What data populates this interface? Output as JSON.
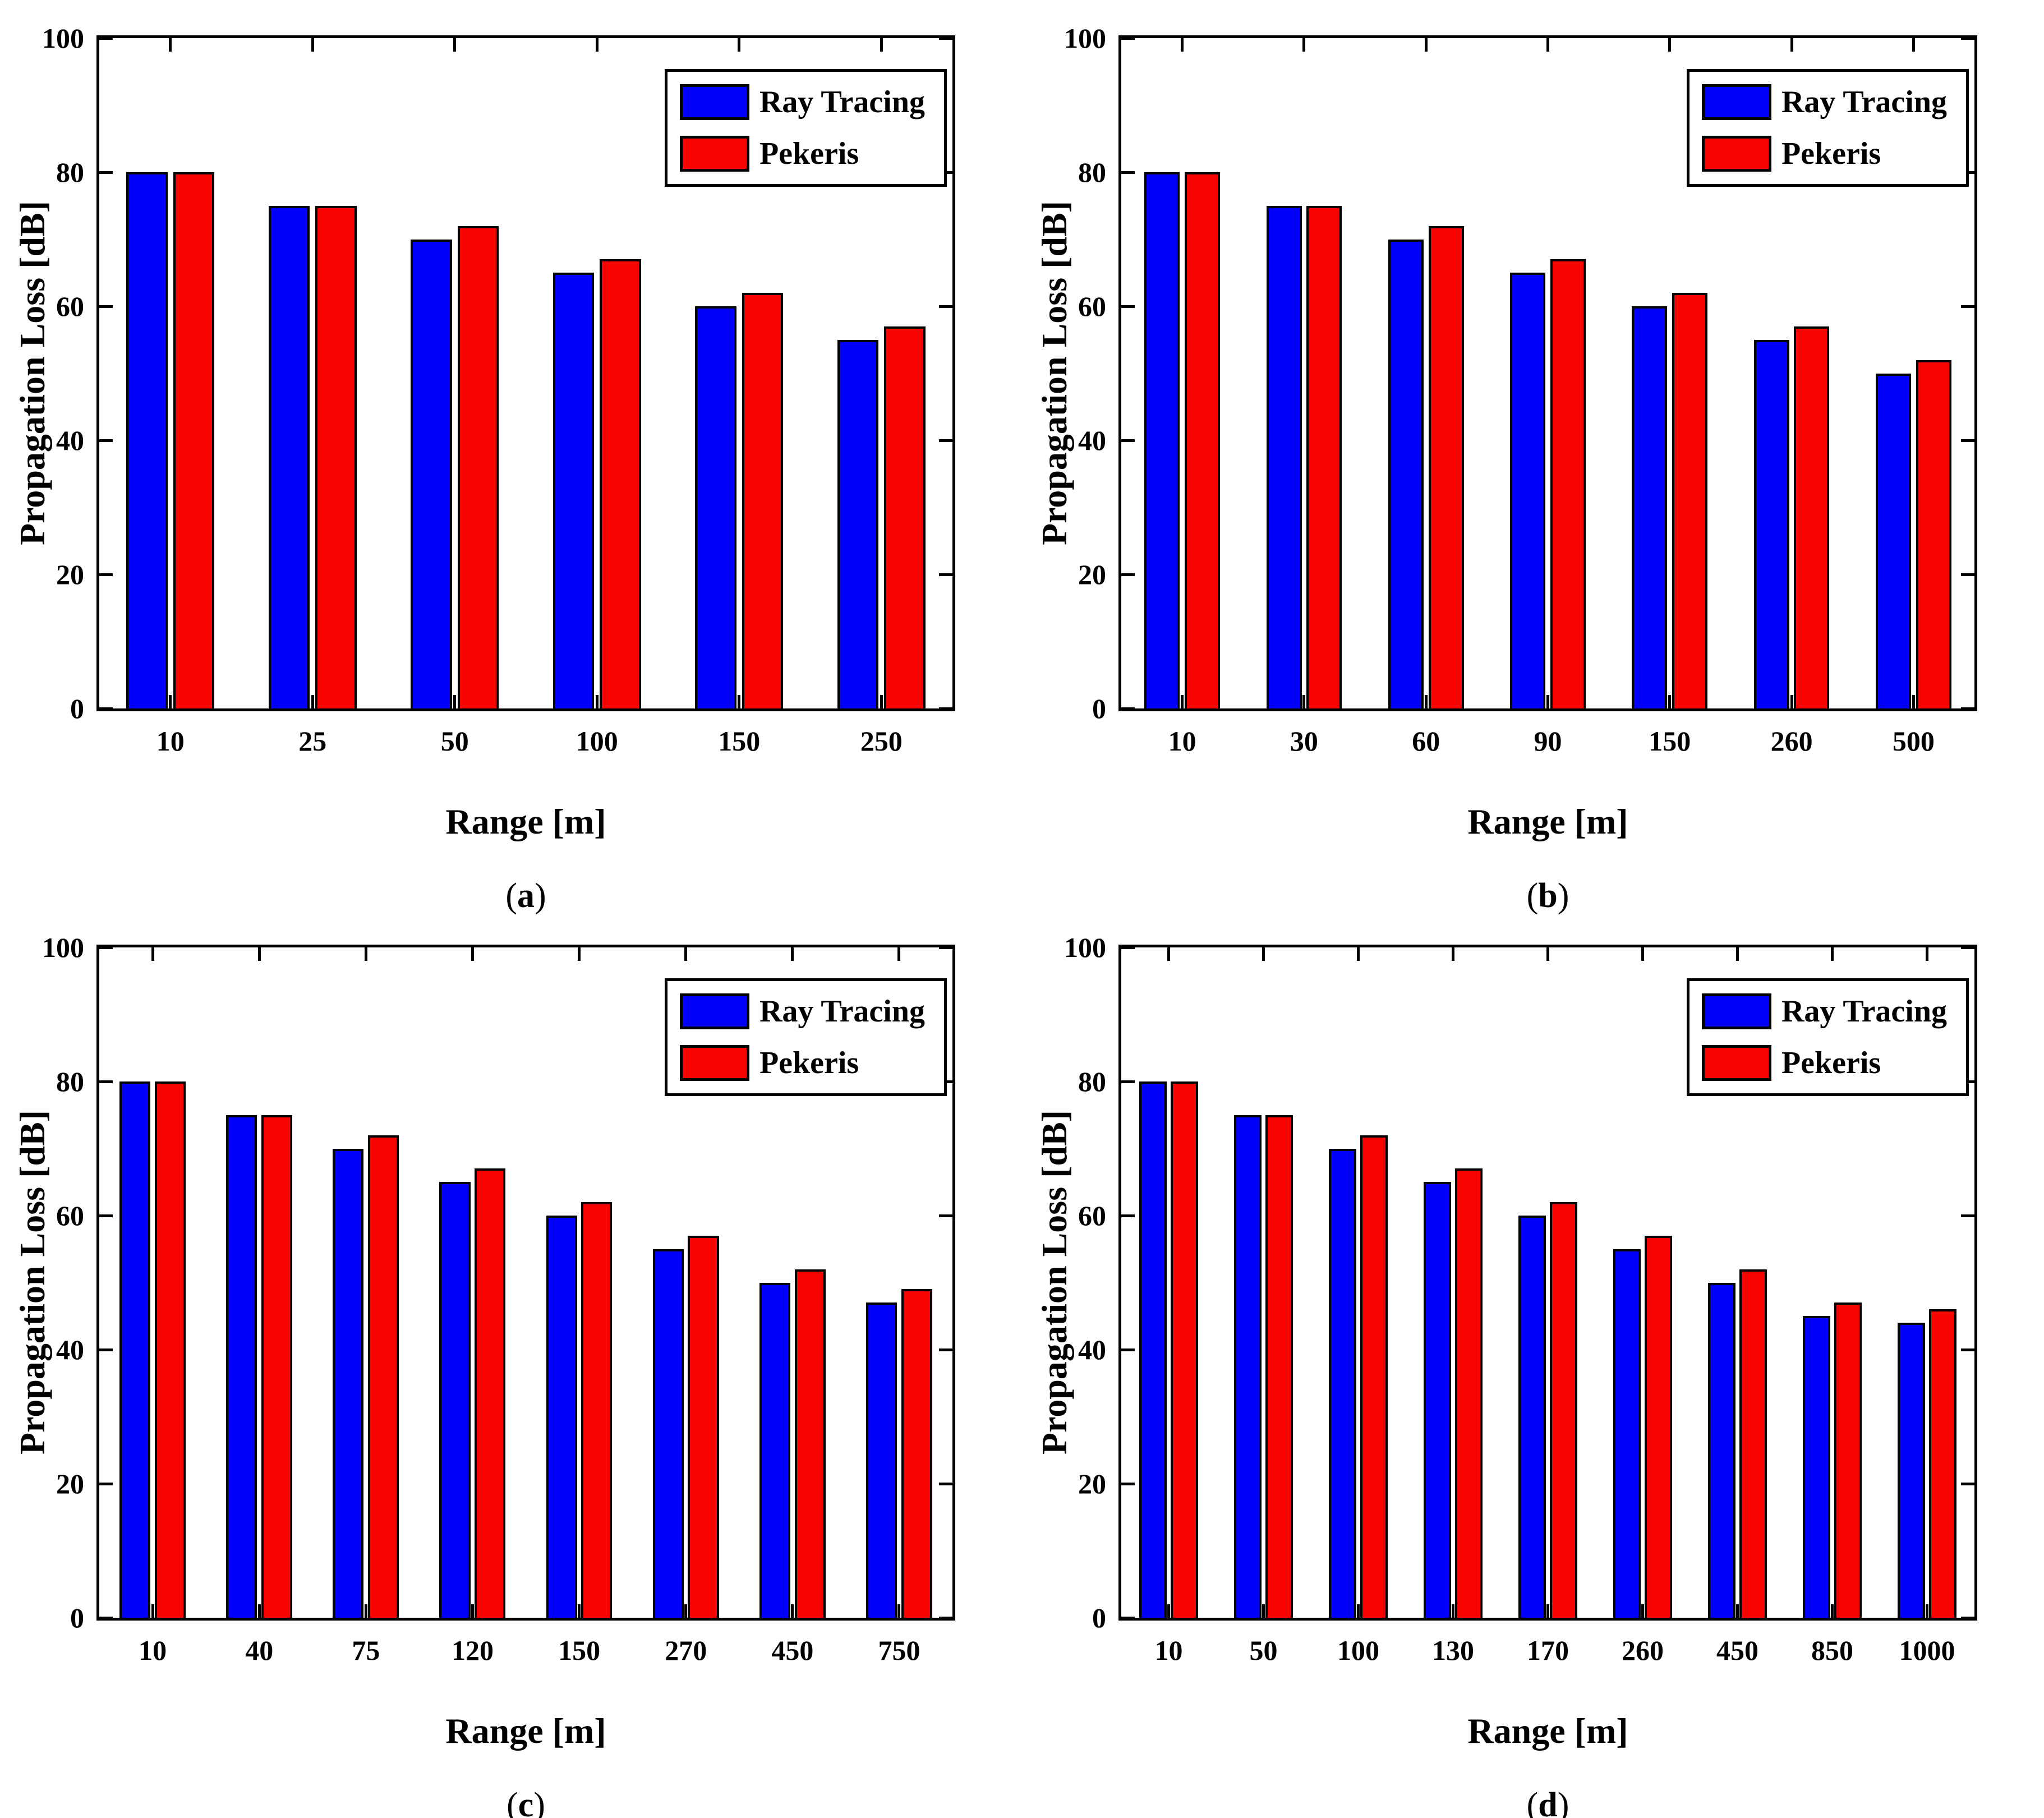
{
  "figure": {
    "background": "#ffffff",
    "layout": "2x2 subplot grid",
    "series_colors": {
      "ray_tracing": "#0000fb",
      "pekeris": "#f80400"
    }
  },
  "chart_data": [
    {
      "id": "a",
      "panel_label": "(a)",
      "type": "bar",
      "title": "",
      "xlabel": "Range [m]",
      "ylabel": "Propagation Loss [dB]",
      "ylim": [
        0,
        100
      ],
      "yticks": [
        0,
        20,
        40,
        60,
        80,
        100
      ],
      "grid": false,
      "legend_position": "top-right inside",
      "categories": [
        "10",
        "25",
        "50",
        "100",
        "150",
        "250"
      ],
      "series": [
        {
          "name": "Ray Tracing",
          "color": "#0000fb",
          "values": [
            80,
            75,
            70,
            65,
            60,
            55
          ]
        },
        {
          "name": "Pekeris",
          "color": "#f80400",
          "values": [
            80,
            75,
            72,
            67,
            62,
            57
          ]
        }
      ]
    },
    {
      "id": "b",
      "panel_label": "(b)",
      "type": "bar",
      "title": "",
      "xlabel": "Range [m]",
      "ylabel": "Propagation Loss [dB]",
      "ylim": [
        0,
        100
      ],
      "yticks": [
        0,
        20,
        40,
        60,
        80,
        100
      ],
      "grid": false,
      "legend_position": "top-right inside",
      "categories": [
        "10",
        "30",
        "60",
        "90",
        "150",
        "260",
        "500"
      ],
      "series": [
        {
          "name": "Ray Tracing",
          "color": "#0000fb",
          "values": [
            80,
            75,
            70,
            65,
            60,
            55,
            50
          ]
        },
        {
          "name": "Pekeris",
          "color": "#f80400",
          "values": [
            80,
            75,
            72,
            67,
            62,
            57,
            52
          ]
        }
      ]
    },
    {
      "id": "c",
      "panel_label": "(c)",
      "type": "bar",
      "title": "",
      "xlabel": "Range [m]",
      "ylabel": "Propagation Loss [dB]",
      "ylim": [
        0,
        100
      ],
      "yticks": [
        0,
        20,
        40,
        60,
        80,
        100
      ],
      "grid": false,
      "legend_position": "top-right inside",
      "categories": [
        "10",
        "40",
        "75",
        "120",
        "150",
        "270",
        "450",
        "750"
      ],
      "series": [
        {
          "name": "Ray Tracing",
          "color": "#0000fb",
          "values": [
            80,
            75,
            70,
            65,
            60,
            55,
            50,
            47
          ]
        },
        {
          "name": "Pekeris",
          "color": "#f80400",
          "values": [
            80,
            75,
            72,
            67,
            62,
            57,
            52,
            49
          ]
        }
      ]
    },
    {
      "id": "d",
      "panel_label": "(d)",
      "type": "bar",
      "title": "",
      "xlabel": "Range [m]",
      "ylabel": "Propagation Loss [dB]",
      "ylim": [
        0,
        100
      ],
      "yticks": [
        0,
        20,
        40,
        60,
        80,
        100
      ],
      "grid": false,
      "legend_position": "top-right inside",
      "categories": [
        "10",
        "50",
        "100",
        "130",
        "170",
        "260",
        "450",
        "850",
        "1000"
      ],
      "series": [
        {
          "name": "Ray Tracing",
          "color": "#0000fb",
          "values": [
            80,
            75,
            70,
            65,
            60,
            55,
            50,
            45,
            44
          ]
        },
        {
          "name": "Pekeris",
          "color": "#f80400",
          "values": [
            80,
            75,
            72,
            67,
            62,
            57,
            52,
            47,
            46
          ]
        }
      ]
    }
  ]
}
